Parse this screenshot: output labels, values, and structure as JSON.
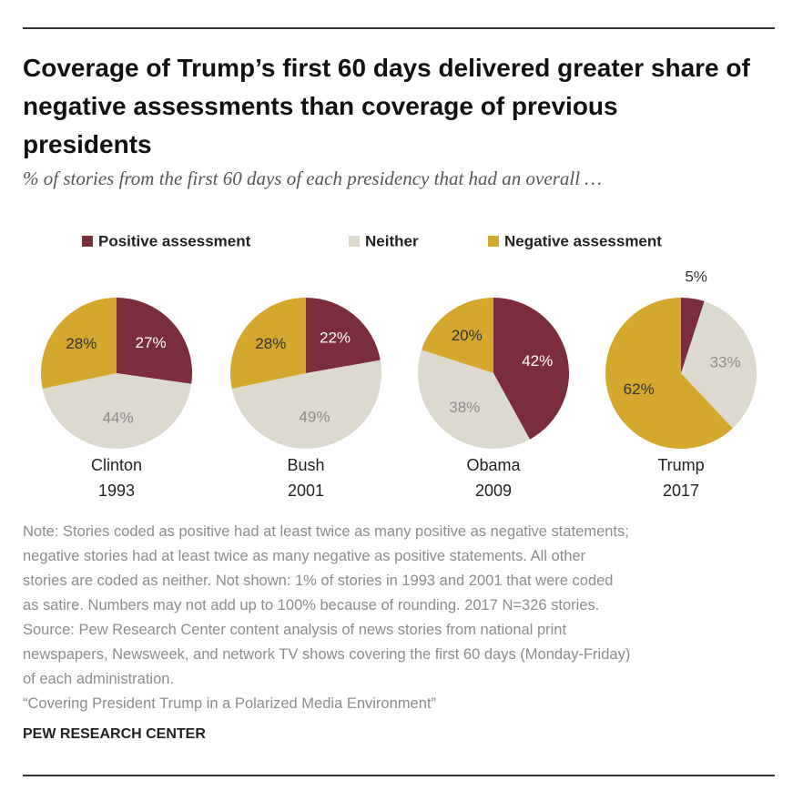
{
  "header": {
    "title": "Coverage of Trump’s first 60 days delivered greater share of negative assessments than coverage of previous presidents",
    "subtitle": "% of stories from the first 60 days of each presidency that had an overall …"
  },
  "chart_data": [
    {
      "type": "pie",
      "label": "Clinton",
      "year": "1993",
      "categories": [
        "Positive assessment",
        "Neither",
        "Negative assessment"
      ],
      "colors": [
        "#7b2d3b",
        "#dcd9cf",
        "#d5a72d"
      ],
      "values": [
        27,
        44,
        28
      ],
      "value_labels": [
        "27%",
        "44%",
        "28%"
      ]
    },
    {
      "type": "pie",
      "label": "Bush",
      "year": "2001",
      "categories": [
        "Positive assessment",
        "Neither",
        "Negative assessment"
      ],
      "colors": [
        "#7b2d3b",
        "#dcd9cf",
        "#d5a72d"
      ],
      "values": [
        22,
        49,
        28
      ],
      "value_labels": [
        "22%",
        "49%",
        "28%"
      ]
    },
    {
      "type": "pie",
      "label": "Obama",
      "year": "2009",
      "categories": [
        "Positive assessment",
        "Neither",
        "Negative assessment"
      ],
      "colors": [
        "#7b2d3b",
        "#dcd9cf",
        "#d5a72d"
      ],
      "values": [
        42,
        38,
        20
      ],
      "value_labels": [
        "42%",
        "38%",
        "20%"
      ]
    },
    {
      "type": "pie",
      "label": "Trump",
      "year": "2017",
      "categories": [
        "Positive assessment",
        "Neither",
        "Negative assessment"
      ],
      "colors": [
        "#7b2d3b",
        "#dcd9cf",
        "#d5a72d"
      ],
      "values": [
        5,
        33,
        62
      ],
      "value_labels": [
        "5%",
        "33%",
        "62%"
      ]
    }
  ],
  "notes": [
    "Note: Stories coded as positive had at least twice as many positive as negative statements;",
    "negative stories had at least twice as many negative as positive statements. All other",
    "stories are coded as neither. Not shown: 1% of stories in 1993 and 2001 that were coded",
    "as satire. Numbers may not add up to 100% because of rounding. 2017 N=326 stories.",
    "Source: Pew Research Center content analysis of news stories from national print",
    "newspapers, Newsweek, and network TV shows covering the first 60 days (Monday-Friday)",
    "of each administration.",
    "“Covering President Trump in a Polarized Media Environment”"
  ],
  "credit": "PEW RESEARCH CENTER"
}
